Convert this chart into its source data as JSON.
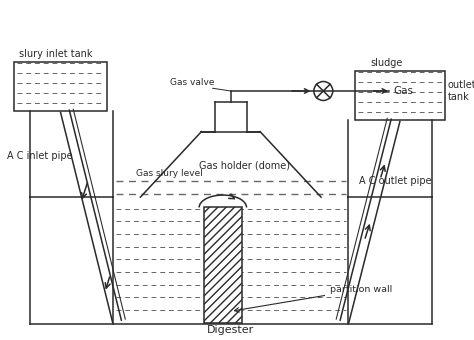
{
  "bg_color": "#ffffff",
  "line_color": "#2a2a2a",
  "labels": {
    "slury_inlet_tank": "slury inlet tank",
    "gas_valve": "Gas valve",
    "gas": "Gas",
    "gas_holder": "Gas holder (dome)",
    "sludge": "sludge",
    "gas_slury_level": "Gas slury level",
    "ac_inlet_pipe": "A C inlet pipe",
    "outlet_tank": "outlet\ntank",
    "ac_outlet_pipe": "A C outlet pipe",
    "partition_wall": "partition wall",
    "digester": "Digester"
  },
  "figsize": [
    4.74,
    3.4
  ],
  "dpi": 100
}
